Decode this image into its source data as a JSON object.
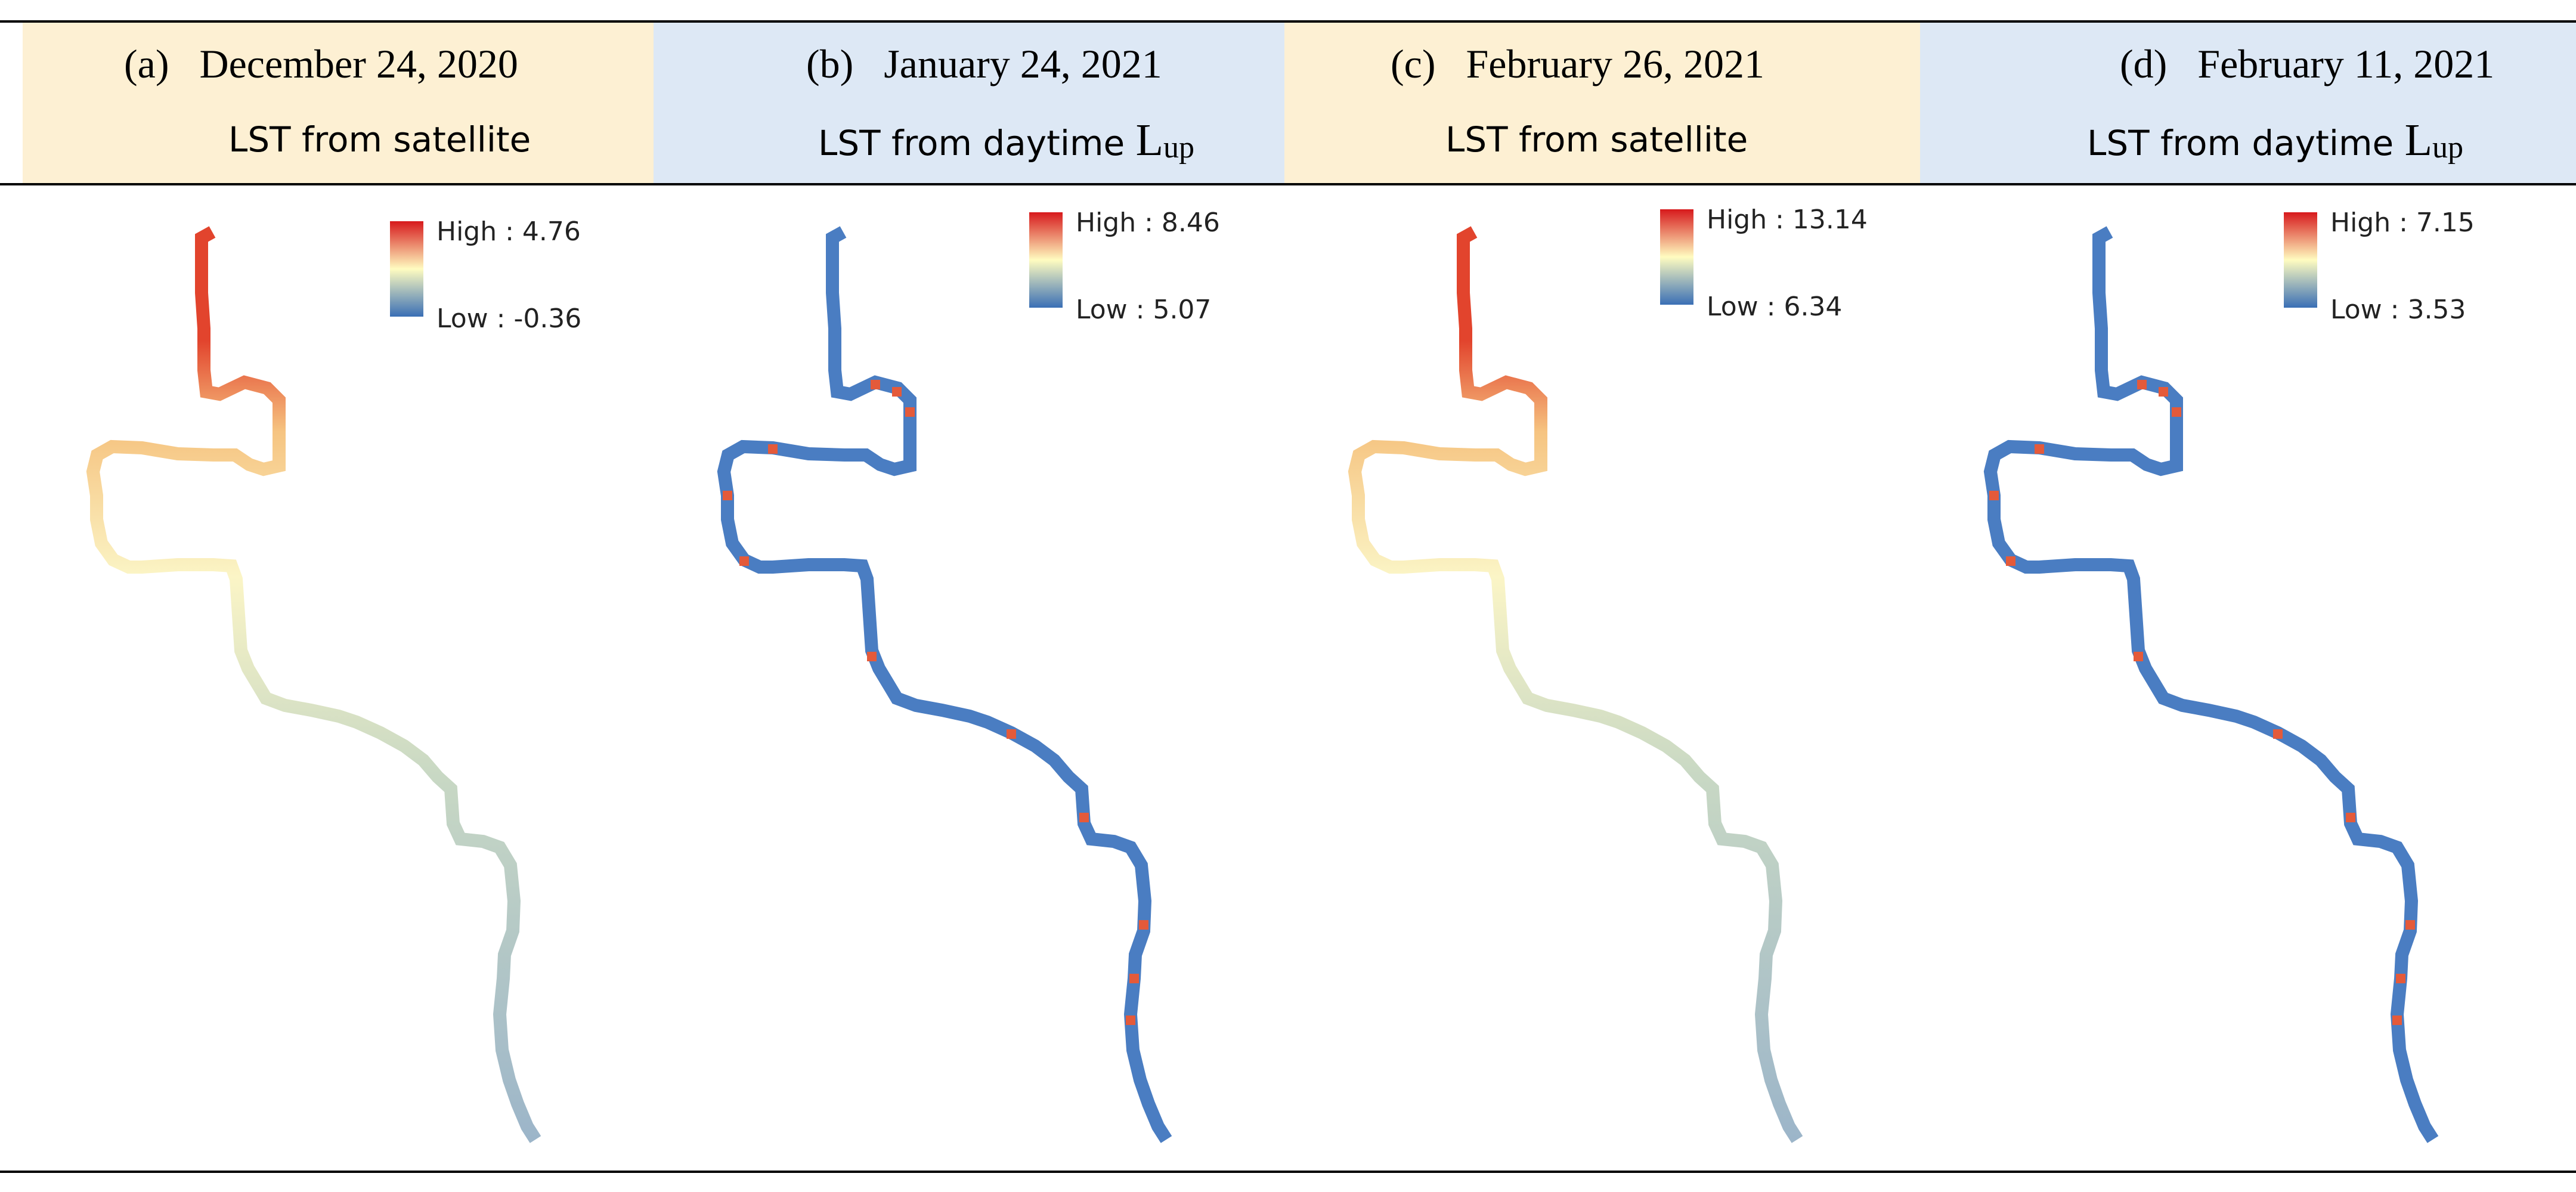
{
  "panels": [
    {
      "letter": "(a)",
      "date": "December 24, 2020",
      "subtitle": "LST from satellite",
      "lup": false,
      "header_color": "#fdf0d3",
      "legend_high": "High : 4.76",
      "legend_low": "Low : -0.36"
    },
    {
      "letter": "(b)",
      "date": "January 24, 2021",
      "subtitle": "LST from daytime",
      "lup": true,
      "lup_symbol": "L",
      "lup_sub": "up",
      "header_color": "#dde8f5",
      "legend_high": "High : 8.46",
      "legend_low": "Low : 5.07"
    },
    {
      "letter": "(c)",
      "date": "February 26, 2021",
      "subtitle": "LST from satellite",
      "lup": false,
      "header_color": "#fdf0d3",
      "legend_high": "High : 13.14",
      "legend_low": "Low : 6.34"
    },
    {
      "letter": "(d)",
      "date": "February 11, 2021",
      "subtitle": "LST from daytime",
      "lup": true,
      "lup_symbol": "L",
      "lup_sub": "up",
      "header_color": "#dde8f5",
      "legend_high": "High : 7.15",
      "legend_low": "Low : 3.53"
    }
  ],
  "colors": {
    "ramp_high": "#d7191c",
    "ramp_mid": "#fffcc0",
    "ramp_low": "#3a6fb5",
    "river_warm_gradient": [
      "#e2442d",
      "#f6c481",
      "#fbf5c6",
      "#c8d8c4",
      "#9cb5c9"
    ],
    "river_cool": "#4a7dc2"
  }
}
